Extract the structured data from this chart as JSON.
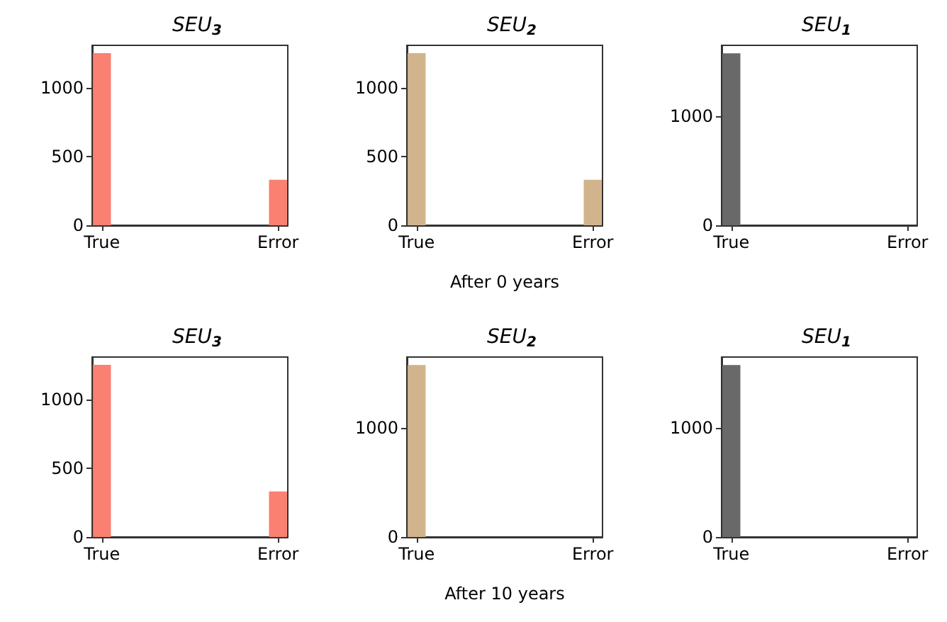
{
  "chart_data": [
    {
      "type": "bar",
      "title": "SEU$_{3}$",
      "categories": [
        "True",
        null,
        null,
        null,
        null,
        null,
        null,
        null,
        null,
        "Error"
      ],
      "values": [
        1250,
        0,
        0,
        0,
        0,
        0,
        0,
        0,
        0,
        330
      ],
      "color": "#fa8072",
      "ylim": [
        0,
        1307
      ],
      "yticks": [
        0,
        500,
        1000
      ]
    },
    {
      "type": "bar",
      "title": "SEU$_{2}$",
      "xlabel": "After 0 years",
      "categories": [
        "True",
        null,
        null,
        null,
        null,
        null,
        null,
        null,
        null,
        "Error"
      ],
      "values": [
        1250,
        0,
        0,
        0,
        0,
        0,
        0,
        0,
        0,
        330
      ],
      "color": "#d2b48c",
      "ylim": [
        0,
        1307
      ],
      "yticks": [
        0,
        500,
        1000
      ]
    },
    {
      "type": "bar",
      "title": "SEU$_{1}$",
      "categories": [
        "True",
        null,
        null,
        null,
        null,
        null,
        null,
        null,
        null,
        "Error"
      ],
      "values": [
        1580,
        0,
        0,
        0,
        0,
        0,
        0,
        0,
        0,
        0
      ],
      "color": "#696969",
      "ylim": [
        0,
        1654
      ],
      "yticks": [
        0,
        1000
      ]
    },
    {
      "type": "bar",
      "title": "SEU$_{3}$",
      "categories": [
        "True",
        null,
        null,
        null,
        null,
        null,
        null,
        null,
        null,
        "Error"
      ],
      "values": [
        1250,
        0,
        0,
        0,
        0,
        0,
        0,
        0,
        0,
        330
      ],
      "color": "#fa8072",
      "ylim": [
        0,
        1307
      ],
      "yticks": [
        0,
        500,
        1000
      ]
    },
    {
      "type": "bar",
      "title": "SEU$_{2}$",
      "xlabel": "After 10 years",
      "categories": [
        "True",
        null,
        null,
        null,
        null,
        null,
        null,
        null,
        null,
        "Error"
      ],
      "values": [
        1580,
        0,
        0,
        0,
        0,
        0,
        0,
        0,
        0,
        0
      ],
      "color": "#d2b48c",
      "ylim": [
        0,
        1654
      ],
      "yticks": [
        0,
        1000
      ]
    },
    {
      "type": "bar",
      "title": "SEU$_{1}$",
      "categories": [
        "True",
        null,
        null,
        null,
        null,
        null,
        null,
        null,
        null,
        "Error"
      ],
      "values": [
        1580,
        0,
        0,
        0,
        0,
        0,
        0,
        0,
        0,
        0
      ],
      "color": "#696969",
      "ylim": [
        0,
        1654
      ],
      "yticks": [
        0,
        1000
      ]
    }
  ]
}
